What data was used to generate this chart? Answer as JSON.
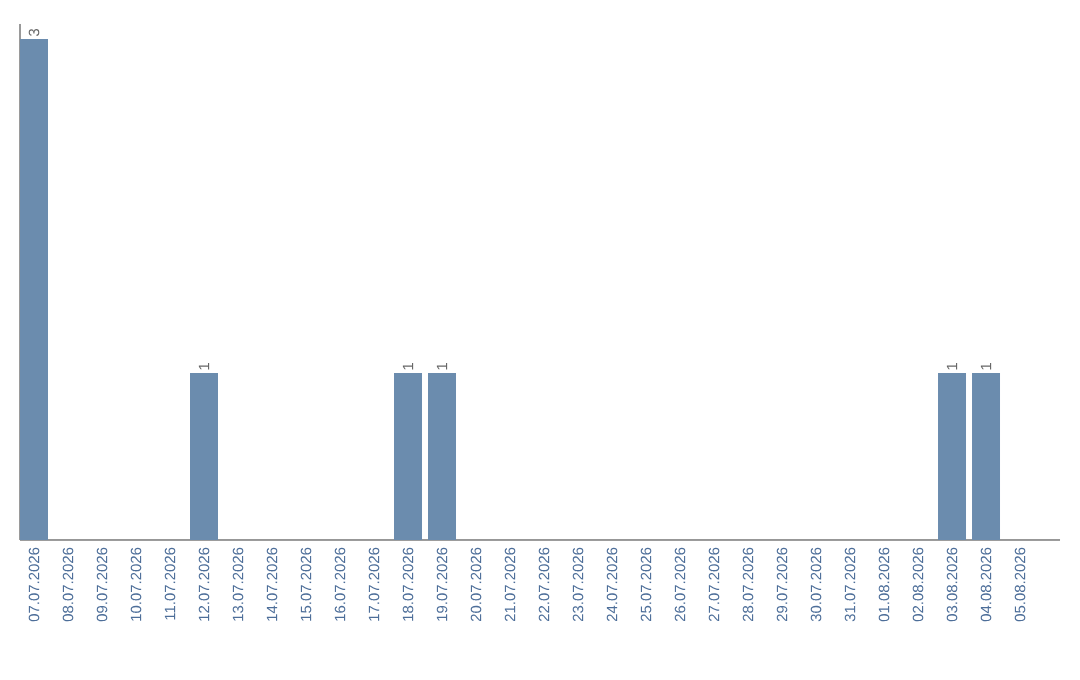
{
  "chart_data": {
    "type": "bar",
    "categories": [
      "07.07.2026",
      "08.07.2026",
      "09.07.2026",
      "10.07.2026",
      "11.07.2026",
      "12.07.2026",
      "13.07.2026",
      "14.07.2026",
      "15.07.2026",
      "16.07.2026",
      "17.07.2026",
      "18.07.2026",
      "19.07.2026",
      "20.07.2026",
      "21.07.2026",
      "22.07.2026",
      "23.07.2026",
      "24.07.2026",
      "25.07.2026",
      "26.07.2026",
      "27.07.2026",
      "28.07.2026",
      "29.07.2026",
      "30.07.2026",
      "31.07.2026",
      "01.08.2026",
      "02.08.2026",
      "03.08.2026",
      "04.08.2026",
      "05.08.2026"
    ],
    "values": [
      3,
      0,
      0,
      0,
      0,
      1,
      0,
      0,
      0,
      0,
      0,
      1,
      1,
      0,
      0,
      0,
      0,
      0,
      0,
      0,
      0,
      0,
      0,
      0,
      0,
      0,
      0,
      1,
      1,
      0
    ],
    "value_labels": [
      "3",
      null,
      null,
      null,
      null,
      "1",
      null,
      null,
      null,
      null,
      null,
      "1",
      "1",
      null,
      null,
      null,
      null,
      null,
      null,
      null,
      null,
      null,
      null,
      null,
      null,
      null,
      null,
      "1",
      "1",
      null
    ],
    "color": "#6b8cae",
    "tick_labels": "x",
    "grid": false
  }
}
